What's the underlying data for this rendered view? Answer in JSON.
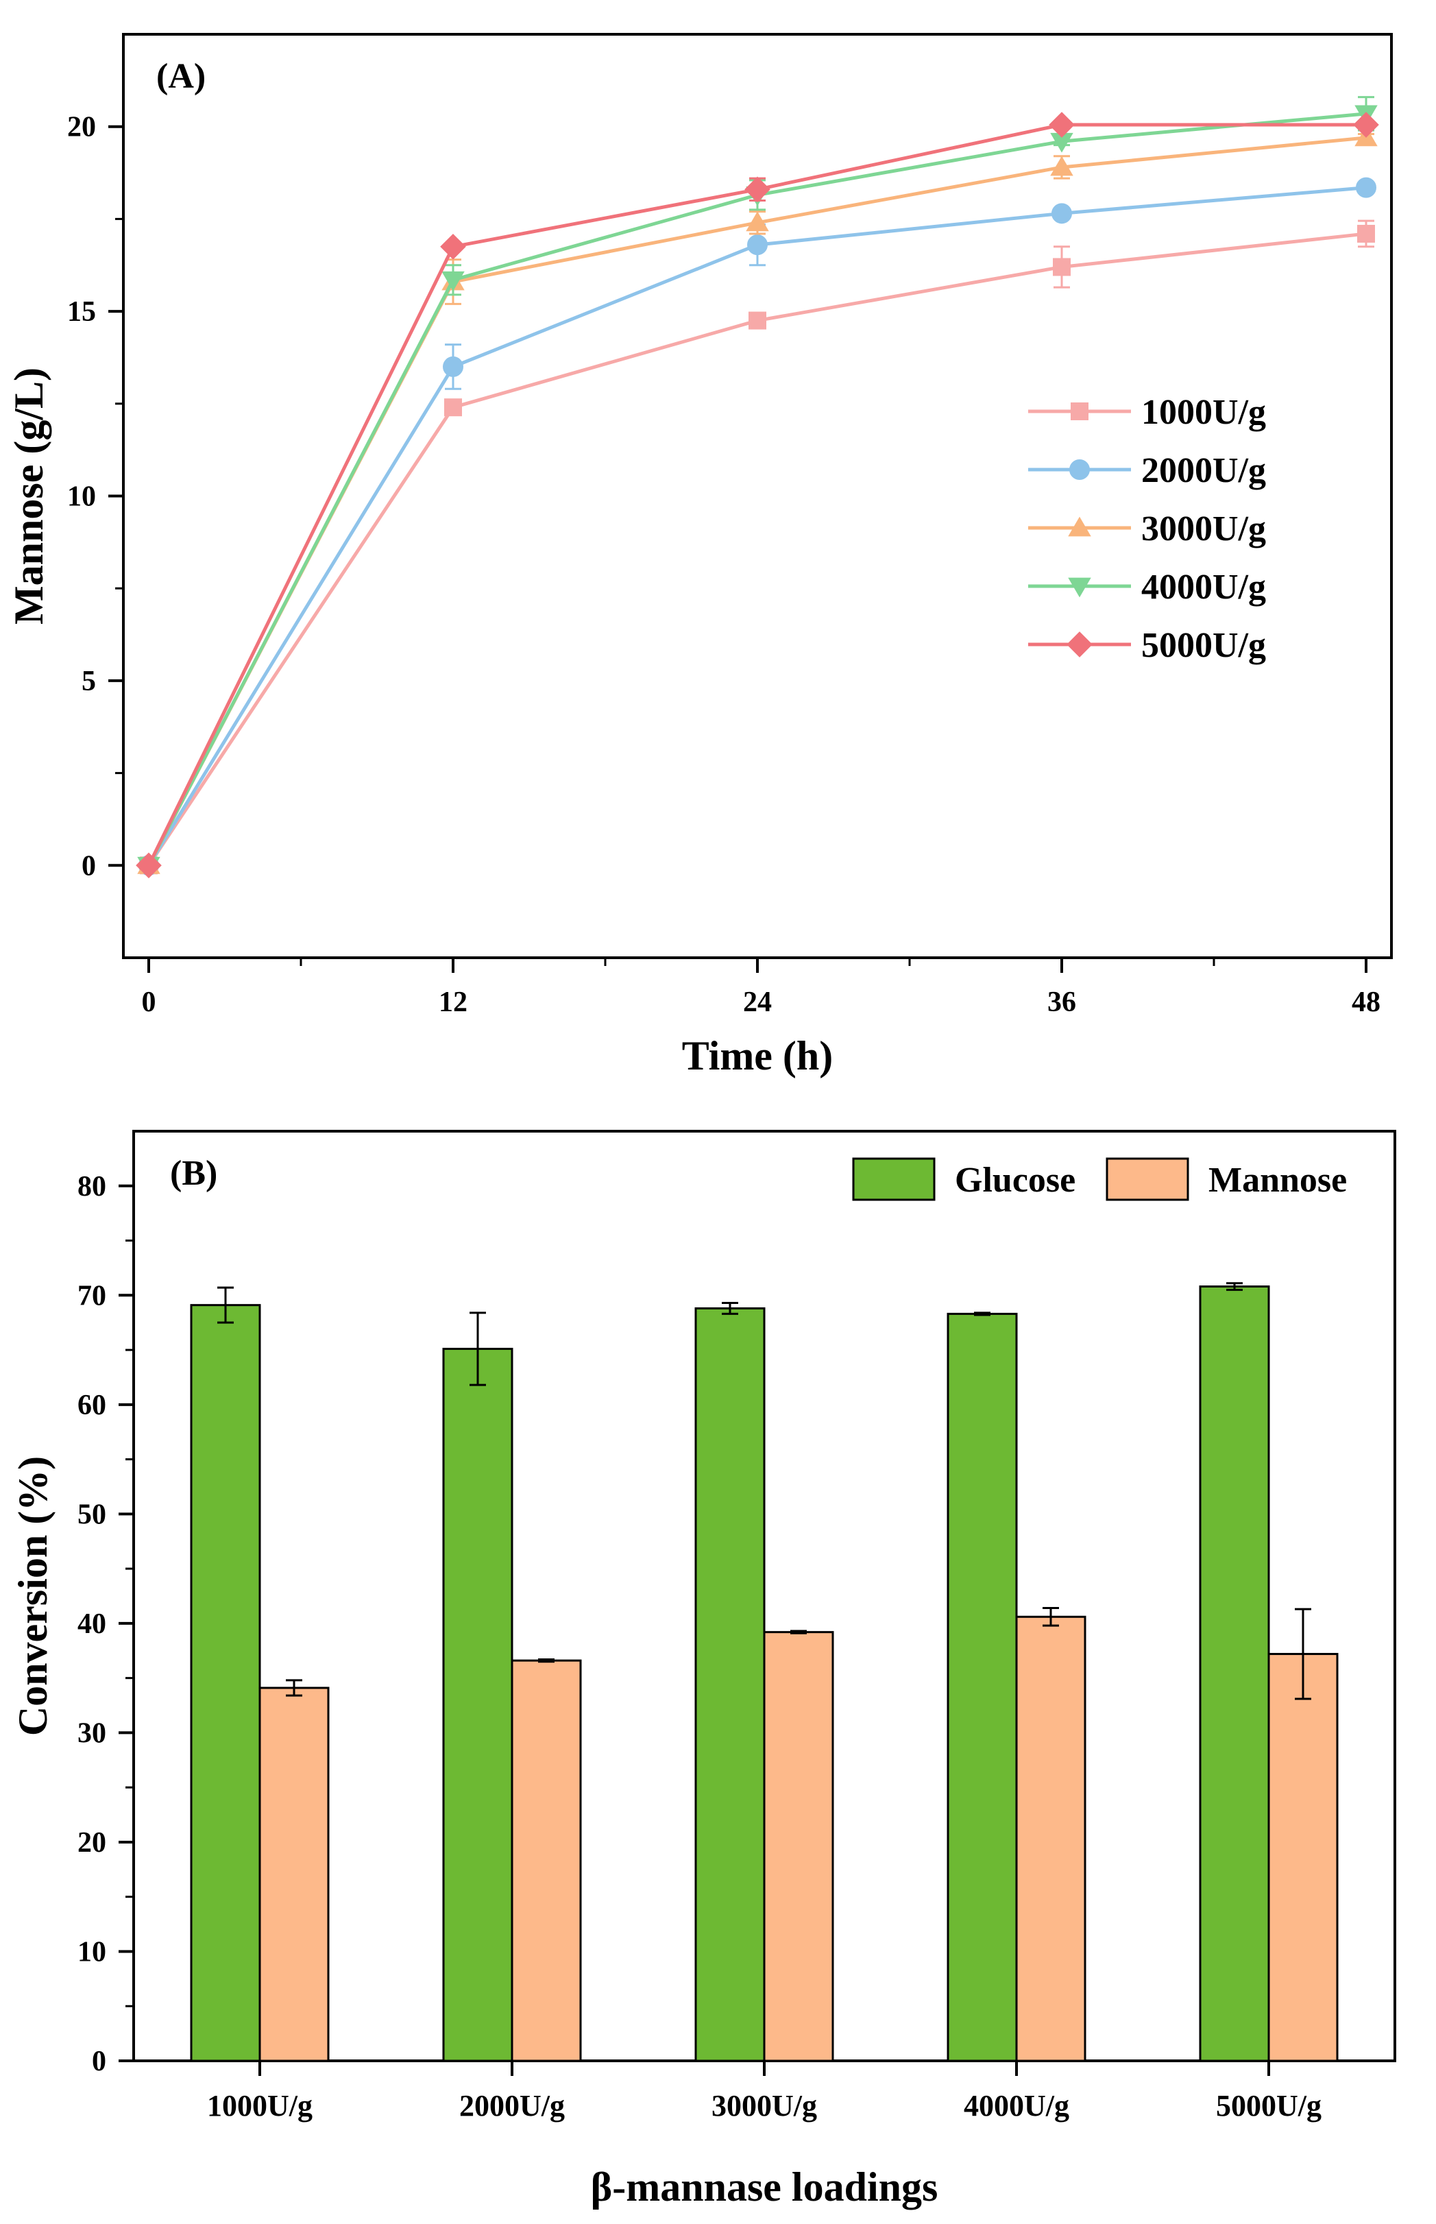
{
  "chart_data": [
    {
      "type": "line",
      "panel_label": "(A)",
      "xlabel": "Time (h)",
      "ylabel": "Mannose (g/L)",
      "x": [
        0,
        12,
        24,
        36,
        48
      ],
      "x_ticks": [
        0,
        12,
        24,
        36,
        48
      ],
      "y_ticks": [
        0,
        5,
        10,
        15,
        20
      ],
      "xlim": [
        -1,
        49
      ],
      "ylim": [
        -2.5,
        22.5
      ],
      "legend_position": "center-right",
      "series": [
        {
          "name": "1000U/g",
          "color": "#F7A9A8",
          "marker": "square",
          "values": [
            0,
            12.4,
            14.75,
            16.2,
            17.1
          ],
          "errors": [
            0,
            0.1,
            0.1,
            0.55,
            0.35
          ]
        },
        {
          "name": "2000U/g",
          "color": "#8EC3EA",
          "marker": "circle",
          "values": [
            0,
            13.5,
            16.8,
            17.65,
            18.35
          ],
          "errors": [
            0,
            0.6,
            0.55,
            0.1,
            0.1
          ]
        },
        {
          "name": "3000U/g",
          "color": "#F9B47B",
          "marker": "triangle-up",
          "values": [
            0,
            15.8,
            17.4,
            18.9,
            19.7
          ],
          "errors": [
            0,
            0.6,
            0.3,
            0.3,
            0.1
          ]
        },
        {
          "name": "4000U/g",
          "color": "#7ED694",
          "marker": "triangle-down",
          "values": [
            0,
            15.85,
            18.15,
            19.6,
            20.35
          ],
          "errors": [
            0,
            0.4,
            0.4,
            0.1,
            0.45
          ]
        },
        {
          "name": "5000U/g",
          "color": "#F0727A",
          "marker": "diamond",
          "values": [
            0,
            16.75,
            18.3,
            20.05,
            20.05
          ],
          "errors": [
            0,
            0.1,
            0.3,
            0.1,
            0.1
          ]
        }
      ]
    },
    {
      "type": "bar",
      "panel_label": "(B)",
      "xlabel": "β-mannase loadings",
      "ylabel": "Conversion (%)",
      "categories": [
        "1000U/g",
        "2000U/g",
        "3000U/g",
        "4000U/g",
        "5000U/g"
      ],
      "y_ticks": [
        0,
        10,
        20,
        30,
        40,
        50,
        60,
        70,
        80
      ],
      "ylim": [
        0,
        85
      ],
      "legend_position": "top-right",
      "series": [
        {
          "name": "Glucose",
          "color": "#6DB933",
          "values": [
            69.1,
            65.1,
            68.8,
            68.3,
            70.8
          ],
          "errors": [
            1.6,
            3.3,
            0.5,
            0.1,
            0.3
          ]
        },
        {
          "name": "Mannose",
          "color": "#FDB98A",
          "values": [
            34.1,
            36.6,
            39.2,
            40.6,
            37.2
          ],
          "errors": [
            0.7,
            0.1,
            0.1,
            0.8,
            4.1
          ]
        }
      ]
    }
  ]
}
